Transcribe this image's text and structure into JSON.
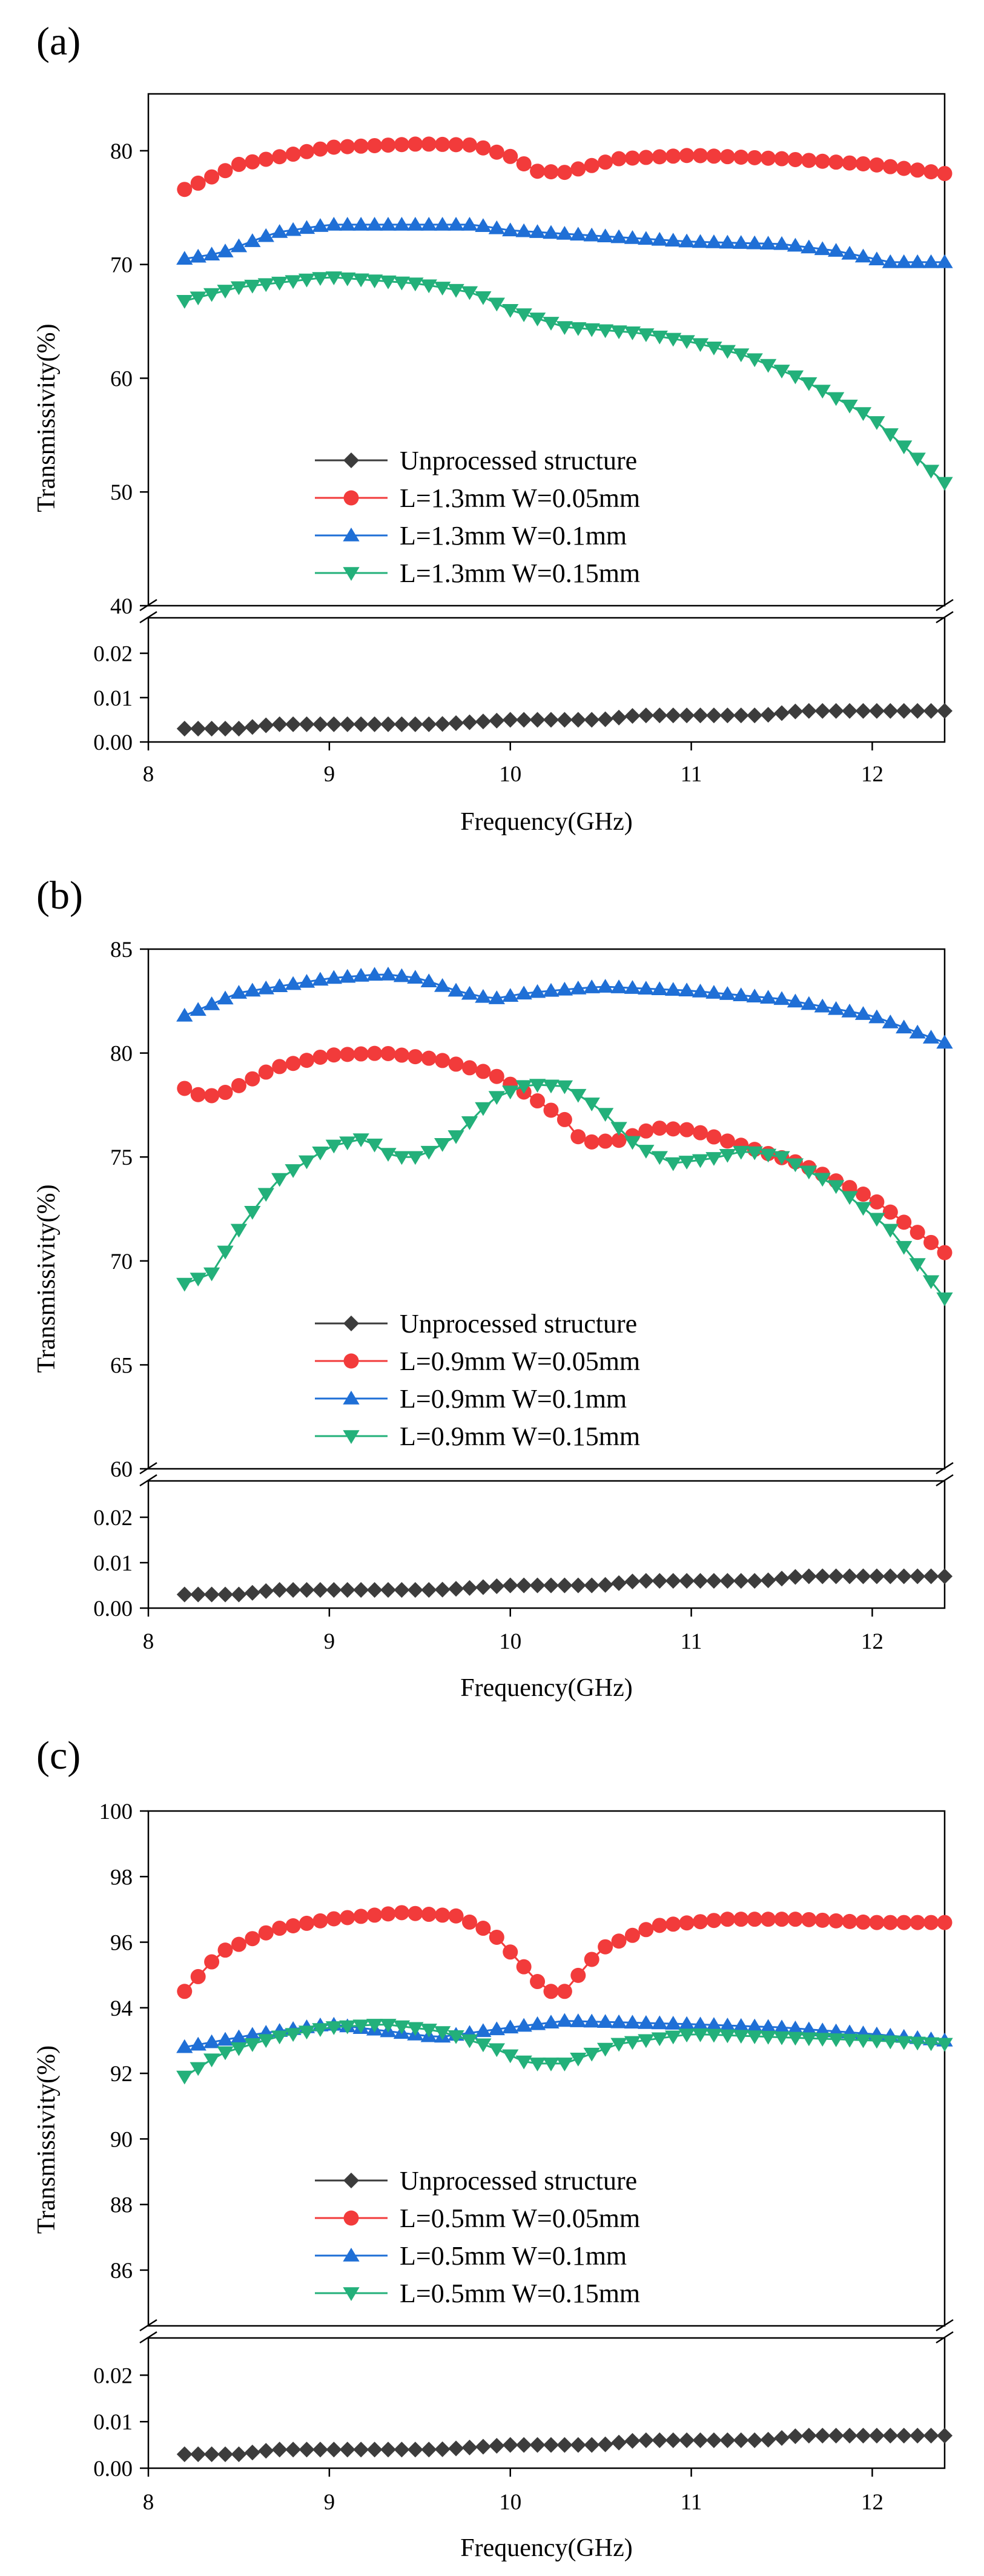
{
  "chart_data": [
    {
      "panel": "(a)",
      "type": "line",
      "xlabel": "Frequency(GHz)",
      "ylabel": "Transmissivity(%)",
      "xlim": [
        8,
        12.4
      ],
      "x_ticks": [
        8,
        9,
        10,
        11,
        12
      ],
      "upper": {
        "ylim": [
          40,
          85
        ],
        "ticks": [
          40,
          50,
          60,
          70,
          80
        ]
      },
      "lower": {
        "ylim": [
          0,
          0.028
        ],
        "ticks": [
          "0.00",
          "0.01",
          "0.02"
        ]
      },
      "series": [
        {
          "name": "Unprocessed structure",
          "color": "#3c3c3c",
          "marker": "diamond",
          "axis": "lower",
          "keypoints": [
            [
              8.2,
              0.003
            ],
            [
              8.5,
              0.003
            ],
            [
              8.7,
              0.004
            ],
            [
              9.6,
              0.004
            ],
            [
              10.0,
              0.005
            ],
            [
              10.5,
              0.005
            ],
            [
              10.7,
              0.006
            ],
            [
              11.4,
              0.006
            ],
            [
              11.6,
              0.007
            ],
            [
              12.4,
              0.007
            ]
          ]
        },
        {
          "name": "L=1.3mm W=0.05mm",
          "color": "#f23b3b",
          "marker": "circle",
          "axis": "upper",
          "keypoints": [
            [
              8.2,
              76.6
            ],
            [
              8.5,
              78.8
            ],
            [
              9.0,
              80.3
            ],
            [
              9.5,
              80.6
            ],
            [
              9.8,
              80.5
            ],
            [
              10.0,
              79.5
            ],
            [
              10.15,
              78.2
            ],
            [
              10.3,
              78.1
            ],
            [
              10.6,
              79.3
            ],
            [
              11.0,
              79.6
            ],
            [
              11.5,
              79.3
            ],
            [
              12.0,
              78.8
            ],
            [
              12.4,
              78.0
            ]
          ]
        },
        {
          "name": "L=1.3mm W=0.1mm",
          "color": "#1f6fd6",
          "marker": "triangle-up",
          "axis": "upper",
          "keypoints": [
            [
              8.2,
              70.5
            ],
            [
              8.4,
              71.0
            ],
            [
              8.7,
              72.8
            ],
            [
              9.0,
              73.5
            ],
            [
              9.5,
              73.5
            ],
            [
              9.8,
              73.5
            ],
            [
              10.0,
              73.0
            ],
            [
              10.5,
              72.5
            ],
            [
              11.0,
              72.0
            ],
            [
              11.5,
              71.8
            ],
            [
              11.8,
              71.2
            ],
            [
              12.1,
              70.2
            ],
            [
              12.4,
              70.2
            ]
          ]
        },
        {
          "name": "L=1.3mm W=0.15mm",
          "color": "#23b07a",
          "marker": "triangle-down",
          "axis": "upper",
          "keypoints": [
            [
              8.2,
              66.8
            ],
            [
              8.5,
              68.0
            ],
            [
              9.0,
              68.9
            ],
            [
              9.5,
              68.3
            ],
            [
              9.8,
              67.5
            ],
            [
              10.0,
              66.0
            ],
            [
              10.3,
              64.5
            ],
            [
              10.7,
              64.0
            ],
            [
              11.0,
              63.2
            ],
            [
              11.3,
              62.0
            ],
            [
              11.6,
              60.0
            ],
            [
              12.0,
              56.5
            ],
            [
              12.4,
              50.8
            ]
          ]
        }
      ],
      "legend": [
        "Unprocessed structure",
        "L=1.3mm W=0.05mm",
        "L=1.3mm W=0.1mm",
        "L=1.3mm W=0.15mm"
      ]
    },
    {
      "panel": "(b)",
      "type": "line",
      "xlabel": "Frequency(GHz)",
      "ylabel": "Transmissivity(%)",
      "xlim": [
        8,
        12.4
      ],
      "x_ticks": [
        8,
        9,
        10,
        11,
        12
      ],
      "upper": {
        "ylim": [
          60,
          85
        ],
        "ticks": [
          60,
          65,
          70,
          75,
          80,
          85
        ]
      },
      "lower": {
        "ylim": [
          0,
          0.028
        ],
        "ticks": [
          "0.00",
          "0.01",
          "0.02"
        ]
      },
      "series": [
        {
          "name": "Unprocessed structure",
          "color": "#3c3c3c",
          "marker": "diamond",
          "axis": "lower",
          "keypoints": [
            [
              8.2,
              0.003
            ],
            [
              8.5,
              0.003
            ],
            [
              8.7,
              0.004
            ],
            [
              9.6,
              0.004
            ],
            [
              10.0,
              0.005
            ],
            [
              10.5,
              0.005
            ],
            [
              10.7,
              0.006
            ],
            [
              11.4,
              0.006
            ],
            [
              11.6,
              0.007
            ],
            [
              12.4,
              0.007
            ]
          ]
        },
        {
          "name": "L=0.9mm W=0.05mm",
          "color": "#f23b3b",
          "marker": "circle",
          "axis": "upper",
          "keypoints": [
            [
              8.2,
              78.3
            ],
            [
              8.3,
              77.9
            ],
            [
              8.4,
              78.0
            ],
            [
              8.7,
              79.3
            ],
            [
              9.0,
              79.9
            ],
            [
              9.3,
              80.0
            ],
            [
              9.6,
              79.7
            ],
            [
              9.9,
              79.0
            ],
            [
              10.1,
              78.0
            ],
            [
              10.3,
              76.8
            ],
            [
              10.4,
              75.7
            ],
            [
              10.6,
              75.8
            ],
            [
              10.8,
              76.4
            ],
            [
              11.0,
              76.3
            ],
            [
              11.3,
              75.5
            ],
            [
              11.6,
              74.7
            ],
            [
              12.0,
              73.0
            ],
            [
              12.4,
              70.4
            ]
          ]
        },
        {
          "name": "L=0.9mm W=0.1mm",
          "color": "#1f6fd6",
          "marker": "triangle-up",
          "axis": "upper",
          "keypoints": [
            [
              8.2,
              81.8
            ],
            [
              8.5,
              82.9
            ],
            [
              9.0,
              83.6
            ],
            [
              9.3,
              83.8
            ],
            [
              9.5,
              83.6
            ],
            [
              9.7,
              83.0
            ],
            [
              9.9,
              82.6
            ],
            [
              10.1,
              82.9
            ],
            [
              10.5,
              83.2
            ],
            [
              11.0,
              83.0
            ],
            [
              11.5,
              82.6
            ],
            [
              12.0,
              81.8
            ],
            [
              12.4,
              80.5
            ]
          ]
        },
        {
          "name": "L=0.9mm W=0.15mm",
          "color": "#23b07a",
          "marker": "triangle-down",
          "axis": "upper",
          "keypoints": [
            [
              8.2,
              68.9
            ],
            [
              8.35,
              69.4
            ],
            [
              8.5,
              71.5
            ],
            [
              8.7,
              73.8
            ],
            [
              9.0,
              75.5
            ],
            [
              9.2,
              75.9
            ],
            [
              9.35,
              75.0
            ],
            [
              9.5,
              75.0
            ],
            [
              9.7,
              76.0
            ],
            [
              9.9,
              77.8
            ],
            [
              10.1,
              78.5
            ],
            [
              10.3,
              78.4
            ],
            [
              10.5,
              77.3
            ],
            [
              10.7,
              75.5
            ],
            [
              10.9,
              74.7
            ],
            [
              11.1,
              74.9
            ],
            [
              11.3,
              75.3
            ],
            [
              11.5,
              75.0
            ],
            [
              11.8,
              73.6
            ],
            [
              12.1,
              71.5
            ],
            [
              12.4,
              68.2
            ]
          ]
        }
      ],
      "legend": [
        "Unprocessed structure",
        "L=0.9mm W=0.05mm",
        "L=0.9mm W=0.1mm",
        "L=0.9mm W=0.15mm"
      ]
    },
    {
      "panel": "(c)",
      "type": "line",
      "xlabel": "Frequency(GHz)",
      "ylabel": "Transmissivity(%)",
      "xlim": [
        8,
        12.4
      ],
      "x_ticks": [
        8,
        9,
        10,
        11,
        12
      ],
      "upper": {
        "ylim": [
          84.3,
          100
        ],
        "ticks": [
          86,
          88,
          90,
          92,
          94,
          96,
          98,
          100
        ]
      },
      "lower": {
        "ylim": [
          0,
          0.028
        ],
        "ticks": [
          "0.00",
          "0.01",
          "0.02"
        ]
      },
      "series": [
        {
          "name": "Unprocessed structure",
          "color": "#3c3c3c",
          "marker": "diamond",
          "axis": "lower",
          "keypoints": [
            [
              8.2,
              0.003
            ],
            [
              8.5,
              0.003
            ],
            [
              8.7,
              0.004
            ],
            [
              9.6,
              0.004
            ],
            [
              10.0,
              0.005
            ],
            [
              10.5,
              0.005
            ],
            [
              10.7,
              0.006
            ],
            [
              11.4,
              0.006
            ],
            [
              11.6,
              0.007
            ],
            [
              12.4,
              0.007
            ]
          ]
        },
        {
          "name": "L=0.5mm W=0.05mm",
          "color": "#f23b3b",
          "marker": "circle",
          "axis": "upper",
          "keypoints": [
            [
              8.2,
              94.5
            ],
            [
              8.4,
              95.7
            ],
            [
              8.7,
              96.4
            ],
            [
              9.0,
              96.7
            ],
            [
              9.4,
              96.9
            ],
            [
              9.7,
              96.8
            ],
            [
              9.9,
              96.3
            ],
            [
              10.1,
              95.1
            ],
            [
              10.2,
              94.5
            ],
            [
              10.3,
              94.5
            ],
            [
              10.5,
              95.8
            ],
            [
              10.8,
              96.5
            ],
            [
              11.2,
              96.7
            ],
            [
              11.6,
              96.7
            ],
            [
              12.0,
              96.6
            ],
            [
              12.4,
              96.6
            ]
          ]
        },
        {
          "name": "L=0.5mm W=0.1mm",
          "color": "#1f6fd6",
          "marker": "triangle-up",
          "axis": "upper",
          "keypoints": [
            [
              8.2,
              92.8
            ],
            [
              8.6,
              93.2
            ],
            [
              9.0,
              93.5
            ],
            [
              9.3,
              93.3
            ],
            [
              9.6,
              93.1
            ],
            [
              10.0,
              93.4
            ],
            [
              10.3,
              93.6
            ],
            [
              11.0,
              93.5
            ],
            [
              11.5,
              93.4
            ],
            [
              12.0,
              93.2
            ],
            [
              12.4,
              93.0
            ]
          ]
        },
        {
          "name": "L=0.5mm W=0.15mm",
          "color": "#23b07a",
          "marker": "triangle-down",
          "axis": "upper",
          "keypoints": [
            [
              8.2,
              91.9
            ],
            [
              8.4,
              92.6
            ],
            [
              8.7,
              93.1
            ],
            [
              9.0,
              93.4
            ],
            [
              9.3,
              93.5
            ],
            [
              9.6,
              93.3
            ],
            [
              9.9,
              92.8
            ],
            [
              10.1,
              92.3
            ],
            [
              10.3,
              92.3
            ],
            [
              10.6,
              92.9
            ],
            [
              11.0,
              93.2
            ],
            [
              11.5,
              93.1
            ],
            [
              12.0,
              93.0
            ],
            [
              12.4,
              92.9
            ]
          ]
        }
      ],
      "legend": [
        "Unprocessed structure",
        "L=0.5mm W=0.05mm",
        "L=0.5mm W=0.1mm",
        "L=0.5mm W=0.15mm"
      ]
    }
  ]
}
